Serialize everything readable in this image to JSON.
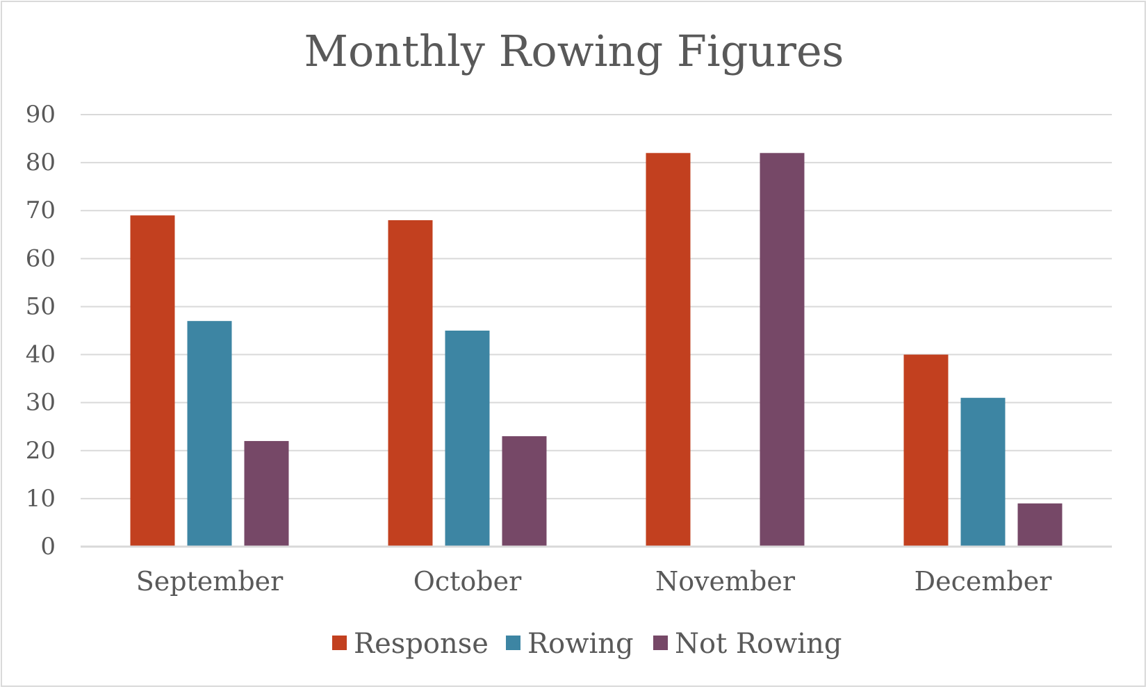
{
  "chart_data": {
    "type": "bar",
    "title": "Monthly Rowing Figures",
    "categories": [
      "September",
      "October",
      "November",
      "December"
    ],
    "series": [
      {
        "name": "Response",
        "color": "#c2401f",
        "values": [
          69,
          68,
          82,
          40
        ]
      },
      {
        "name": "Rowing",
        "color": "#3d85a3",
        "values": [
          47,
          45,
          0,
          31
        ]
      },
      {
        "name": "Not Rowing",
        "color": "#764867",
        "values": [
          22,
          23,
          82,
          9
        ]
      }
    ],
    "ylim": [
      0,
      90
    ],
    "yticks": [
      "0",
      "10",
      "20",
      "30",
      "40",
      "50",
      "60",
      "70",
      "80",
      "90"
    ],
    "grid": true,
    "legend": "bottom"
  }
}
